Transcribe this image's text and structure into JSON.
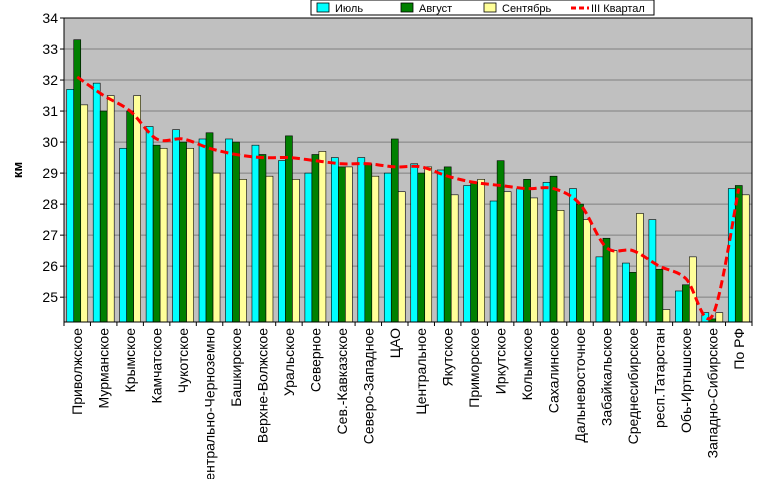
{
  "chart_data": {
    "type": "bar",
    "ylabel": "км",
    "ylim": [
      24.2,
      34
    ],
    "yticks": [
      25,
      26,
      27,
      28,
      29,
      30,
      31,
      32,
      33,
      34
    ],
    "grid": true,
    "legend_position": "top-right",
    "categories": [
      "Приволжское",
      "Мурманское",
      "Крымское",
      "Камчатское",
      "Чукотское",
      "Центрально-Черноземно",
      "Башкирское",
      "Верхне-Волжское",
      "Уральское",
      "Северное",
      "Сев.-Кавказское",
      "Северо-Западное",
      "ЦАО",
      "Центральное",
      "Якутское",
      "Приморское",
      "Иркутское",
      "Колымское",
      "Сахалинское",
      "Дальневосточное",
      "Забайкальское",
      "Среднесибирское",
      "респ.Татарстан",
      "Обь-Иртышское",
      "Западно-Сибирское",
      "По РФ"
    ],
    "series": [
      {
        "name": "Июль",
        "type": "bar",
        "color": "#00ffff",
        "values": [
          31.7,
          31.9,
          29.8,
          30.5,
          30.4,
          30.1,
          30.1,
          29.9,
          29.4,
          29.0,
          29.5,
          29.5,
          29.0,
          29.3,
          29.1,
          28.6,
          28.1,
          28.5,
          28.7,
          28.5,
          26.3,
          26.1,
          27.5,
          25.2,
          24.5,
          28.5
        ]
      },
      {
        "name": "Август",
        "type": "bar",
        "color": "#008000",
        "values": [
          33.3,
          31.0,
          31.0,
          29.9,
          30.0,
          30.3,
          30.0,
          29.6,
          30.2,
          29.6,
          29.2,
          29.3,
          30.1,
          29.0,
          29.2,
          28.7,
          29.4,
          28.8,
          28.9,
          28.0,
          26.9,
          25.8,
          25.9,
          25.4,
          24.3,
          28.6
        ]
      },
      {
        "name": "Сентябрь",
        "type": "bar",
        "color": "#ffff99",
        "values": [
          31.2,
          31.5,
          31.5,
          29.8,
          29.8,
          29.0,
          28.8,
          28.9,
          28.8,
          29.7,
          29.2,
          28.9,
          28.4,
          29.2,
          28.3,
          28.8,
          28.4,
          28.2,
          27.8,
          27.5,
          26.5,
          27.7,
          24.6,
          26.3,
          24.5,
          28.3
        ]
      },
      {
        "name": "III Квартал",
        "type": "line",
        "color": "#ff0000",
        "values": [
          32.1,
          31.5,
          31.0,
          30.1,
          30.1,
          29.8,
          29.6,
          29.5,
          29.5,
          29.4,
          29.3,
          29.3,
          29.2,
          29.2,
          28.9,
          28.7,
          28.6,
          28.5,
          28.5,
          28.0,
          26.6,
          26.5,
          26.0,
          25.6,
          24.4,
          28.5
        ]
      }
    ]
  }
}
